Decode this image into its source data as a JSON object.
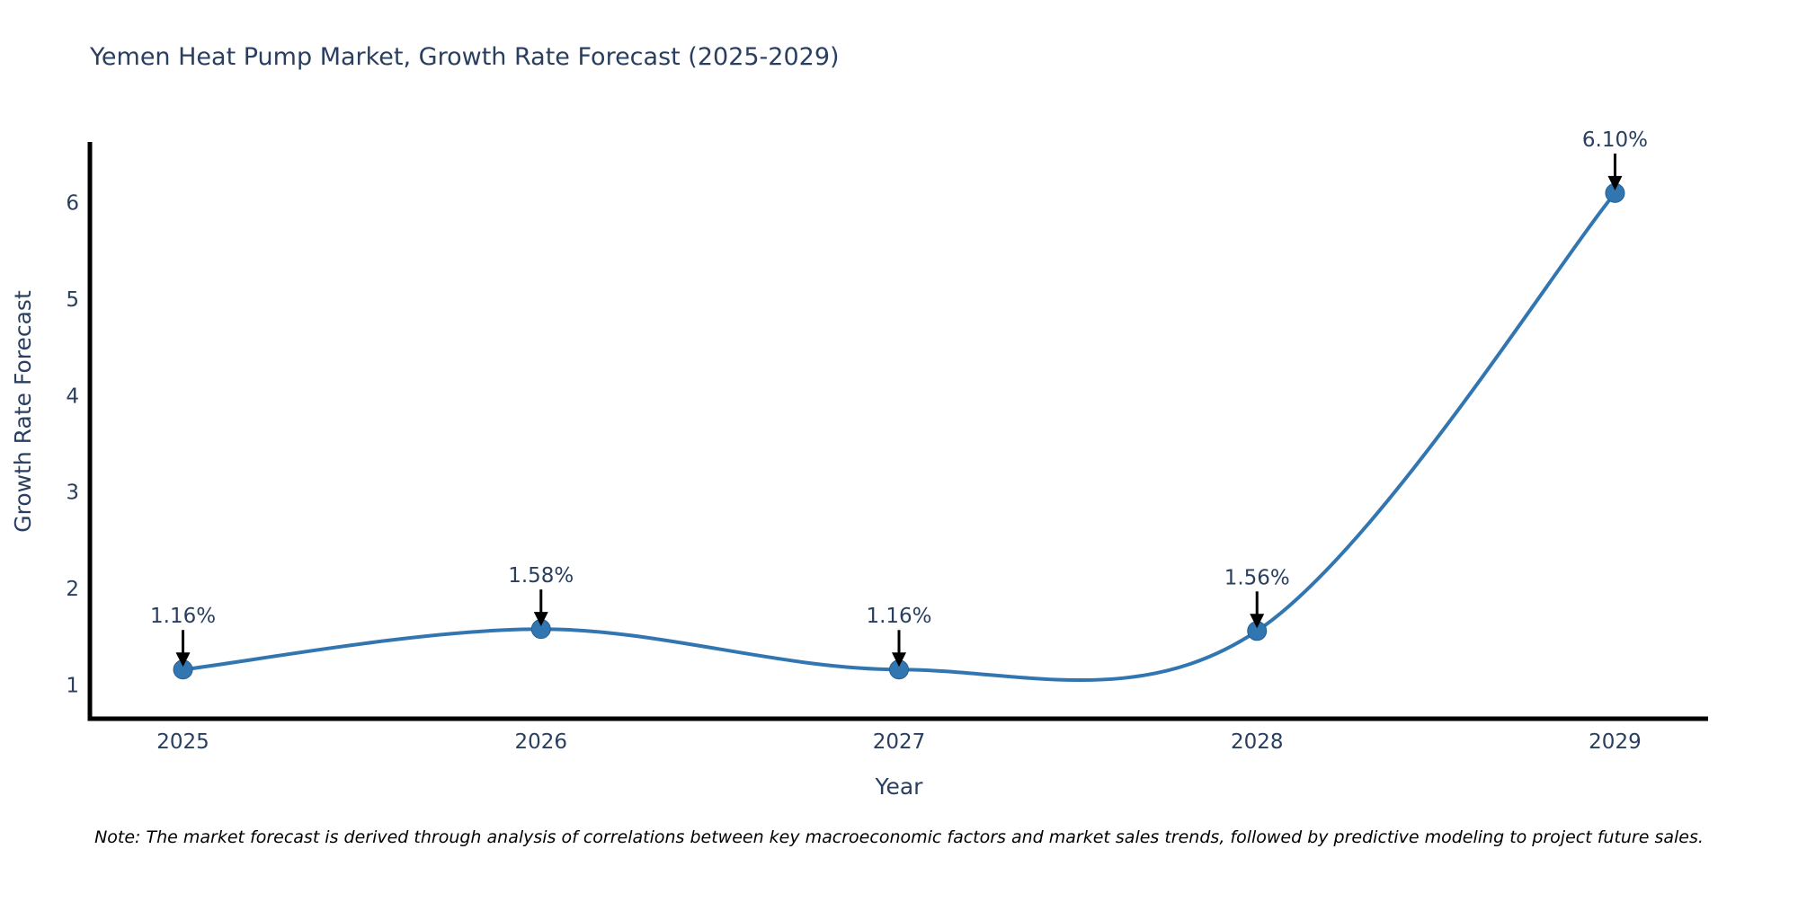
{
  "note": "Note: The market forecast is derived through analysis of correlations between key macroeconomic factors and market sales trends, followed by predictive modeling to project future sales.",
  "chart_data": {
    "type": "line",
    "title": "Yemen Heat Pump Market, Growth Rate Forecast (2025-2029)",
    "xlabel": "Year",
    "ylabel": "Growth Rate Forecast",
    "categories": [
      2025,
      2026,
      2027,
      2028,
      2029
    ],
    "values": [
      1.16,
      1.58,
      1.16,
      1.56,
      6.1
    ],
    "point_labels": [
      "1.16%",
      "1.58%",
      "1.16%",
      "1.56%",
      "6.10%"
    ],
    "y_ticks": [
      1,
      2,
      3,
      4,
      5,
      6
    ],
    "x_range": [
      2024.74,
      2029.26
    ],
    "y_range": [
      0.65,
      6.63
    ],
    "line_shape": "spline",
    "grid": false,
    "legend": "none",
    "line_color": "#3276b1",
    "marker_color": "#3276b1",
    "marker_edge_color": "#275e8e",
    "axis_color": "#000000",
    "text_color": "#2a3f5f",
    "annotation_arrow_color": "#000000"
  }
}
